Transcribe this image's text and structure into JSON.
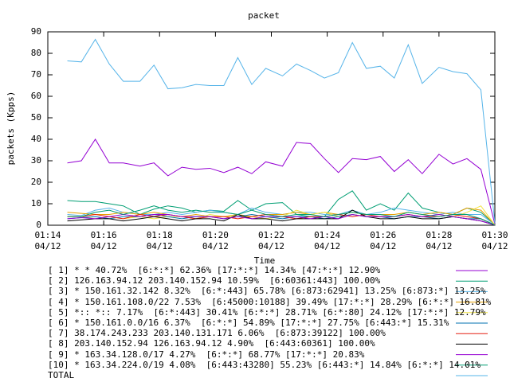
{
  "chart_data": {
    "type": "line",
    "title": "packet",
    "xlabel": "Time",
    "ylabel": "packets (Kpps)",
    "x": [
      74.7,
      75.2,
      75.7,
      76.2,
      76.7,
      77.3,
      77.8,
      78.3,
      78.8,
      79.3,
      79.8,
      80.3,
      80.8,
      81.3,
      81.8,
      82.4,
      82.9,
      83.4,
      83.9,
      84.4,
      84.9,
      85.4,
      85.9,
      86.4,
      86.9,
      87.4,
      88.0,
      88.5,
      89.0,
      89.5,
      90.0
    ],
    "xlim": [
      74,
      90
    ],
    "xticks": [
      {
        "value": 74,
        "label": "01:14\n04/12"
      },
      {
        "value": 76,
        "label": "01:16\n04/12"
      },
      {
        "value": 78,
        "label": "01:18\n04/12"
      },
      {
        "value": 80,
        "label": "01:20\n04/12"
      },
      {
        "value": 82,
        "label": "01:22\n04/12"
      },
      {
        "value": 84,
        "label": "01:24\n04/12"
      },
      {
        "value": 86,
        "label": "01:26\n04/12"
      },
      {
        "value": 88,
        "label": "01:28\n04/12"
      },
      {
        "value": 90,
        "label": "01:30\n04/12"
      }
    ],
    "ylim": [
      0,
      90
    ],
    "yticks": [
      0,
      10,
      20,
      30,
      40,
      50,
      60,
      70,
      80,
      90
    ],
    "series": [
      {
        "name": "[ 1] * * 40.72%  [6:*:*] 62.36% [17:*:*] 14.34% [47:*:*] 12.90%",
        "color": "#9400d3",
        "values": [
          29,
          30,
          40,
          29,
          29,
          27.5,
          29,
          23,
          27,
          26,
          26.5,
          24.5,
          27,
          24,
          29.5,
          27.5,
          38.5,
          38,
          31,
          24.5,
          31,
          30.5,
          32,
          25,
          30.5,
          24,
          33,
          28.5,
          31,
          26,
          0.5
        ]
      },
      {
        "name": "[ 2] 126.163.94.12 203.140.152.94 10.59%  [6:60361:443] 100.00%",
        "color": "#009e73",
        "values": [
          11.5,
          11,
          11,
          10,
          9,
          5,
          7.5,
          9,
          8,
          6,
          7,
          6.5,
          11.5,
          7,
          10,
          10.5,
          5,
          4,
          4,
          12,
          16,
          7,
          10,
          7,
          15,
          8,
          6,
          5,
          8,
          6,
          0.3
        ]
      },
      {
        "name": "[ 3] * 150.161.32.142 8.32%  [6:*:443] 65.78% [6:873:62941] 13.25% [6:873:*] 13.25%",
        "color": "#56b4e9",
        "values": [
          5,
          4.5,
          7,
          8,
          6,
          5,
          5,
          6,
          5,
          6,
          7,
          6,
          5,
          8,
          6,
          5,
          6,
          6,
          5,
          5,
          7,
          5,
          6,
          8,
          7,
          6,
          5,
          6,
          5,
          5,
          0.2
        ]
      },
      {
        "name": "[ 4] * 150.161.108.0/22 7.53%  [6:45000:10188] 39.49% [17:*:*] 28.29% [6:*:*] 16.81%",
        "color": "#e69f00",
        "values": [
          6,
          5.5,
          5,
          5,
          6,
          5,
          6,
          5,
          4,
          5,
          4,
          4,
          5,
          4,
          5,
          5,
          6,
          5,
          6,
          5,
          6,
          5,
          5,
          5,
          6,
          5,
          6,
          5,
          8,
          7,
          0.2
        ]
      },
      {
        "name": "[ 5] *:: *:: 7.17%  [6:*:443] 30.41% [6:*:*] 28.71% [6:*:80] 24.12% [17:*:*] 12.79%",
        "color": "#f0e442",
        "values": [
          4,
          4,
          3,
          4,
          3,
          4,
          3,
          4,
          4,
          3,
          5,
          4,
          4,
          4,
          3,
          4,
          7,
          5,
          6,
          4,
          5,
          4,
          4,
          4,
          5,
          4,
          5,
          4,
          6,
          9,
          0.1
        ]
      },
      {
        "name": "[ 6] * 150.161.0.0/16 6.37%  [6:*:*] 54.89% [17:*:*] 27.75% [6:443:*] 15.31%",
        "color": "#0072b2",
        "values": [
          3,
          3.5,
          4,
          3,
          4,
          4,
          5,
          4,
          3,
          4,
          4,
          3,
          4,
          5,
          4,
          3,
          4,
          4,
          3,
          4,
          5,
          4,
          4,
          3,
          4,
          4,
          3,
          4,
          3,
          3,
          0.1
        ]
      },
      {
        "name": "[ 7] 38.174.243.233 203.140.131.171 6.06%  [6:873:39122] 100.00%",
        "color": "#e51e10",
        "values": [
          4,
          4,
          5,
          4,
          3,
          5,
          4,
          5,
          4,
          3,
          4,
          4,
          3,
          4,
          5,
          4,
          3,
          4,
          4,
          5,
          4,
          5,
          4,
          4,
          5,
          4,
          4,
          5,
          4,
          3,
          0.1
        ]
      },
      {
        "name": "[ 8] 203.140.152.94 126.163.94.12 4.90%  [6:443:60361] 100.00%",
        "color": "#000000",
        "values": [
          2,
          2.5,
          3,
          3,
          2,
          3,
          4,
          3,
          2,
          3,
          3,
          2,
          5,
          3,
          3,
          2,
          3,
          3,
          3,
          3,
          7,
          4,
          3,
          3,
          4,
          3,
          3,
          4,
          3,
          2,
          0.1
        ]
      },
      {
        "name": "[ 9] * 163.34.128.0/17 4.27%  [6:*:*] 68.77% [17:*:*] 20.83%",
        "color": "#9400d3",
        "values": [
          3,
          3.5,
          3,
          4,
          5,
          4,
          5,
          5,
          4,
          4,
          4,
          3,
          4,
          3,
          4,
          4,
          4,
          3,
          4,
          3,
          5,
          4,
          4,
          4,
          5,
          4,
          5,
          4,
          3,
          2,
          0.1
        ]
      },
      {
        "name": "[10] * 163.34.224.0/19 4.08%  [6:443:43280] 55.23% [6:443:*] 14.84% [6:*:*] 14.01%",
        "color": "#009e73",
        "values": [
          4,
          4,
          6,
          7,
          5,
          7,
          9,
          7,
          6,
          7,
          6,
          6,
          5,
          7,
          5,
          4,
          5,
          5,
          4,
          5,
          6,
          5,
          5,
          4,
          6,
          5,
          4,
          5,
          5,
          3,
          0.1
        ]
      },
      {
        "name": "TOTAL",
        "color": "#56b4e9",
        "values": [
          76.5,
          76,
          86.5,
          75,
          67,
          67,
          74.5,
          63.5,
          64,
          65.5,
          65,
          65,
          78,
          65.5,
          73,
          69.5,
          75,
          72,
          68.5,
          71,
          85,
          73,
          74,
          68.5,
          84,
          66,
          73.5,
          71.5,
          70.5,
          63,
          1
        ]
      }
    ]
  }
}
